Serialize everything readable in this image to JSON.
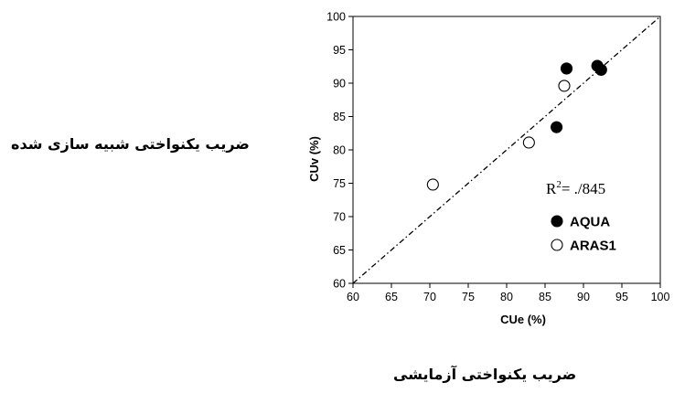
{
  "chart_data": {
    "type": "scatter",
    "xlabel": "CUe (%)",
    "ylabel": "CUv (%)",
    "xlim": [
      60,
      100
    ],
    "ylim": [
      60,
      100
    ],
    "xticks": [
      "60",
      "65",
      "70",
      "75",
      "80",
      "85",
      "90",
      "95",
      "100"
    ],
    "yticks": [
      "60",
      "65",
      "70",
      "75",
      "80",
      "85",
      "90",
      "95",
      "100"
    ],
    "grid": false,
    "reference_line": {
      "style": "dash-dot",
      "from": [
        60,
        60
      ],
      "to": [
        100,
        100
      ]
    },
    "annotation": {
      "prefix": "R",
      "superscript": "2",
      "suffix": "= ./845"
    },
    "legend": {
      "placement": "bottom-right"
    },
    "series": [
      {
        "name": "AQUA",
        "marker": "filled-circle",
        "points": [
          {
            "x": 87.8,
            "y": 92.2
          },
          {
            "x": 91.8,
            "y": 92.6
          },
          {
            "x": 92.3,
            "y": 92.0
          },
          {
            "x": 86.5,
            "y": 83.4
          }
        ]
      },
      {
        "name": "ARAS1",
        "marker": "open-circle",
        "points": [
          {
            "x": 87.5,
            "y": 89.6
          },
          {
            "x": 82.9,
            "y": 81.1
          },
          {
            "x": 70.4,
            "y": 74.8
          }
        ]
      }
    ]
  },
  "side_labels": {
    "y_persian": "ضریب یکنواختی شبیه سازی شده",
    "x_persian": "ضریب یکنواختی آزمایشی"
  },
  "colors": {
    "filled_marker": "#000000",
    "open_marker_fill": "#ffffff",
    "axis": "#000000"
  }
}
